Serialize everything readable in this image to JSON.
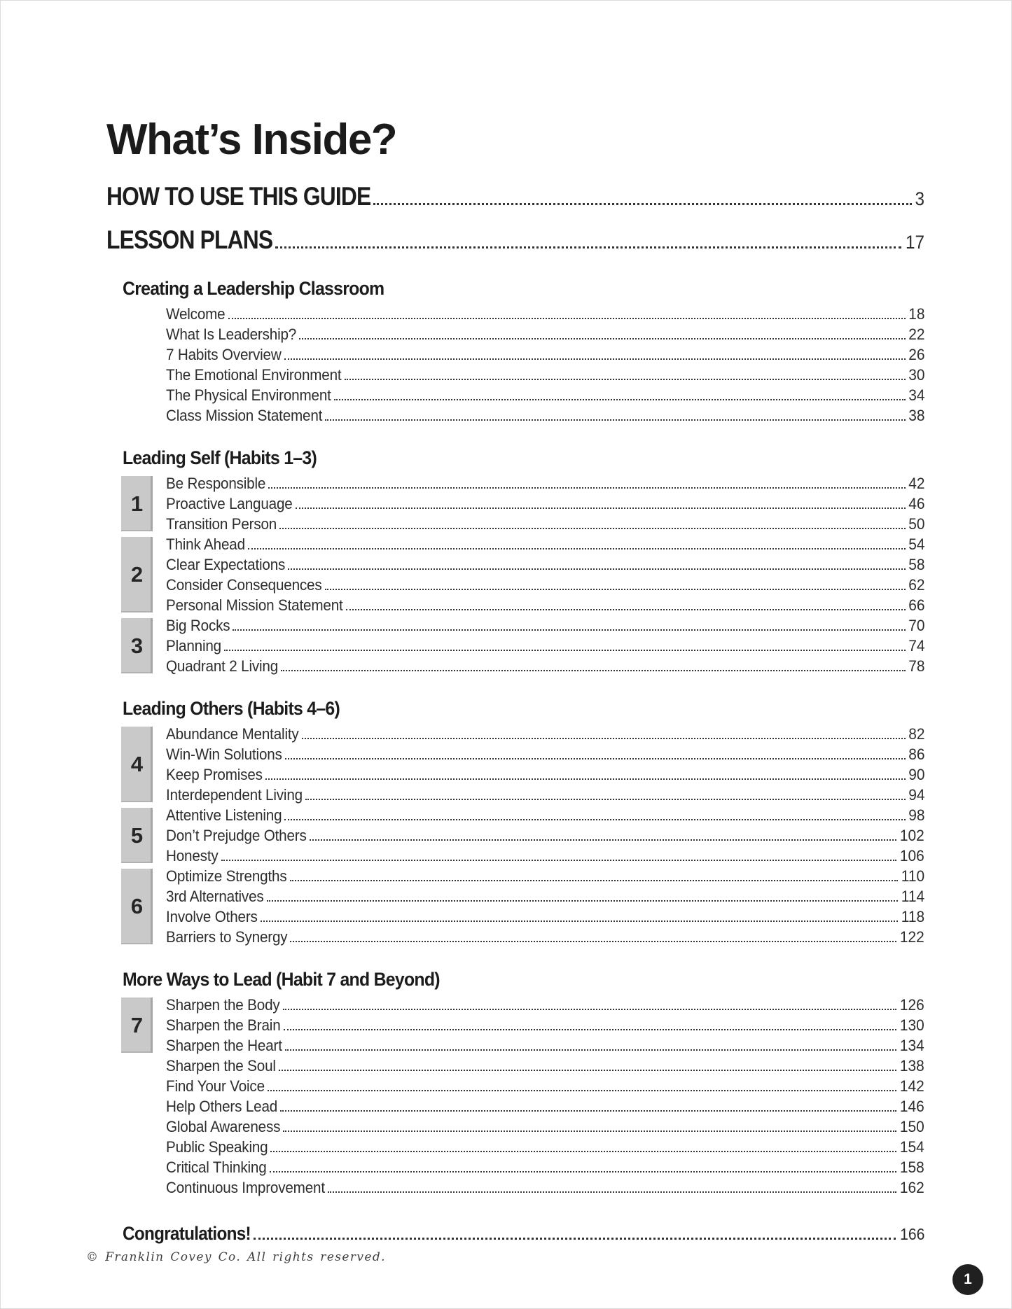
{
  "page": {
    "title": "What’s Inside?",
    "footer": "© Franklin Covey Co. All rights reserved.",
    "page_badge": "1"
  },
  "colors": {
    "heading_text": "#1b1b1b",
    "body_text": "#2d2d2d",
    "dot_leader": "#343434",
    "habit_badge_bg": "#c9c9c9",
    "habit_badge_edge": "#a6a6a6",
    "page_badge_bg": "#202020",
    "page_badge_text": "#ffffff"
  },
  "toc": {
    "top_entries": [
      {
        "label": "HOW TO USE THIS GUIDE",
        "page": "3"
      },
      {
        "label": "LESSON PLANS",
        "page": "17"
      }
    ],
    "sections": [
      {
        "title": "Creating a Leadership Classroom",
        "groups": [
          {
            "badge": null,
            "items": [
              {
                "label": "Welcome",
                "page": "18"
              },
              {
                "label": "What Is Leadership?",
                "page": "22"
              },
              {
                "label": "7 Habits Overview",
                "page": "26"
              },
              {
                "label": "The Emotional Environment",
                "page": "30"
              },
              {
                "label": "The Physical Environment",
                "page": "34"
              },
              {
                "label": "Class Mission Statement",
                "page": "38"
              }
            ]
          }
        ]
      },
      {
        "title": "Leading Self (Habits 1–3)",
        "groups": [
          {
            "badge": "1",
            "items": [
              {
                "label": "Be Responsible",
                "page": "42"
              },
              {
                "label": "Proactive Language",
                "page": "46"
              },
              {
                "label": "Transition Person",
                "page": "50"
              }
            ]
          },
          {
            "badge": "2",
            "items": [
              {
                "label": "Think Ahead",
                "page": "54"
              },
              {
                "label": "Clear Expectations",
                "page": "58"
              },
              {
                "label": "Consider Consequences",
                "page": "62"
              },
              {
                "label": "Personal Mission Statement",
                "page": "66"
              }
            ]
          },
          {
            "badge": "3",
            "items": [
              {
                "label": "Big Rocks",
                "page": "70"
              },
              {
                "label": "Planning",
                "page": "74"
              },
              {
                "label": "Quadrant 2 Living",
                "page": "78"
              }
            ]
          }
        ]
      },
      {
        "title": "Leading Others (Habits 4–6)",
        "groups": [
          {
            "badge": "4",
            "items": [
              {
                "label": "Abundance Mentality",
                "page": "82"
              },
              {
                "label": "Win-Win Solutions",
                "page": "86"
              },
              {
                "label": "Keep Promises",
                "page": "90"
              },
              {
                "label": "Interdependent Living",
                "page": "94"
              }
            ]
          },
          {
            "badge": "5",
            "items": [
              {
                "label": "Attentive Listening",
                "page": "98"
              },
              {
                "label": "Don’t Prejudge Others",
                "page": "102"
              },
              {
                "label": "Honesty",
                "page": "106"
              }
            ]
          },
          {
            "badge": "6",
            "items": [
              {
                "label": "Optimize Strengths",
                "page": "110"
              },
              {
                "label": "3rd Alternatives",
                "page": "114"
              },
              {
                "label": "Involve Others",
                "page": "118"
              },
              {
                "label": "Barriers to Synergy",
                "page": "122"
              }
            ]
          }
        ]
      },
      {
        "title": "More Ways to Lead (Habit 7 and Beyond)",
        "groups": [
          {
            "badge": "7",
            "items": [
              {
                "label": "Sharpen the Body",
                "page": "126"
              },
              {
                "label": "Sharpen the Brain",
                "page": "130"
              },
              {
                "label": "Sharpen the Heart",
                "page": "134"
              }
            ]
          },
          {
            "badge": null,
            "items": [
              {
                "label": "Sharpen the Soul",
                "page": "138"
              },
              {
                "label": "Find Your Voice",
                "page": "142"
              },
              {
                "label": "Help Others Lead",
                "page": "146"
              },
              {
                "label": "Global Awareness",
                "page": "150"
              },
              {
                "label": "Public Speaking",
                "page": "154"
              },
              {
                "label": "Critical Thinking",
                "page": "158"
              },
              {
                "label": "Continuous Improvement",
                "page": "162"
              }
            ]
          }
        ]
      }
    ],
    "closing_entry": {
      "label": "Congratulations!",
      "page": "166"
    }
  }
}
